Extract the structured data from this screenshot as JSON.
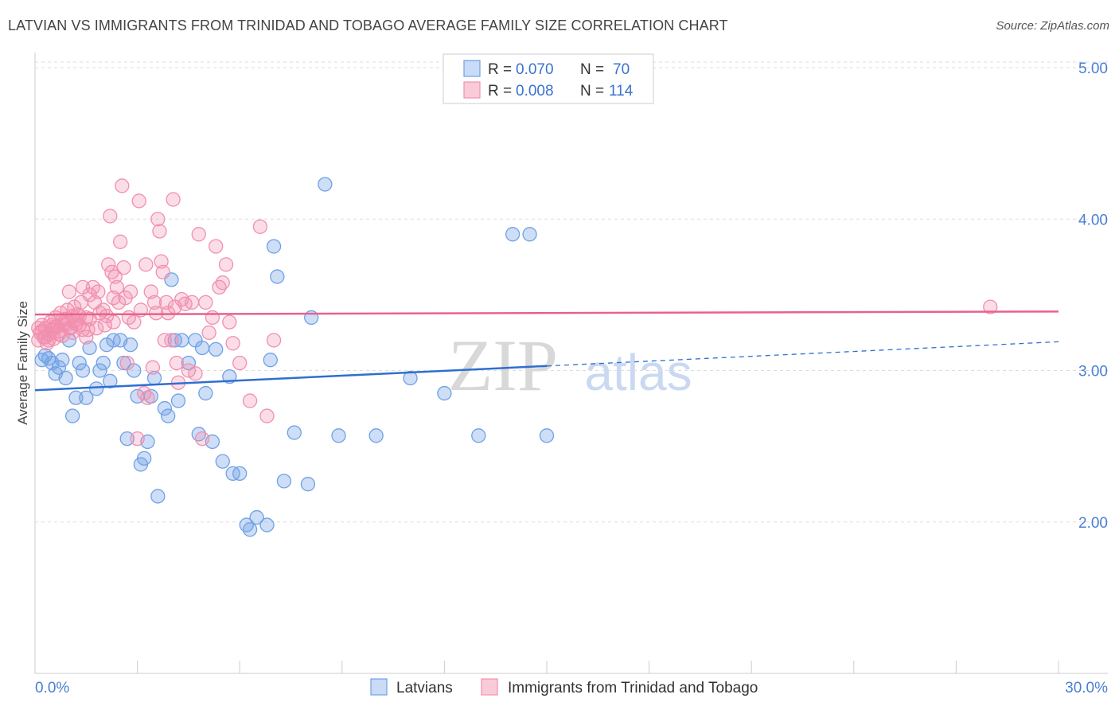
{
  "title": "LATVIAN VS IMMIGRANTS FROM TRINIDAD AND TOBAGO AVERAGE FAMILY SIZE CORRELATION CHART",
  "source": "Source: ZipAtlas.com",
  "watermark": {
    "zip": "ZIP",
    "atlas": "atlas"
  },
  "legend_top": [
    {
      "r_label": "R =",
      "r_value": "0.070",
      "n_label": "N =",
      "n_value": "70",
      "color": "#6fa1e6"
    },
    {
      "r_label": "R =",
      "r_value": "0.008",
      "n_label": "N =",
      "n_value": "114",
      "color": "#f28fae"
    }
  ],
  "chart_data": {
    "type": "scatter",
    "title": "LATVIAN VS IMMIGRANTS FROM TRINIDAD AND TOBAGO AVERAGE FAMILY SIZE CORRELATION CHART",
    "xlabel": "",
    "ylabel": "Average Family Size",
    "xlim": [
      0,
      30
    ],
    "ylim": [
      1.0,
      5.1
    ],
    "x_tick_labels": [
      "0.0%",
      "30.0%"
    ],
    "y_ticks": [
      2.0,
      3.0,
      4.0,
      5.0
    ],
    "y_tick_labels": [
      "2.00",
      "3.00",
      "4.00",
      "5.00"
    ],
    "grid": true,
    "legend": "bottom-center",
    "series": [
      {
        "name": "Latvians",
        "color": "#6fa1e6",
        "line_color": "#2f6fcf",
        "trend": {
          "x0": 0,
          "y0": 2.87,
          "x1": 15.0,
          "y1": 3.03,
          "x_dash_end": 30,
          "y_dash_end": 3.19
        },
        "points": [
          [
            0.2,
            3.07
          ],
          [
            0.3,
            3.1
          ],
          [
            0.4,
            3.08
          ],
          [
            0.5,
            3.05
          ],
          [
            0.6,
            2.98
          ],
          [
            0.7,
            3.02
          ],
          [
            0.8,
            3.07
          ],
          [
            0.9,
            2.95
          ],
          [
            1.0,
            3.2
          ],
          [
            1.1,
            2.7
          ],
          [
            1.2,
            2.82
          ],
          [
            1.3,
            3.05
          ],
          [
            1.4,
            3.0
          ],
          [
            1.5,
            2.82
          ],
          [
            1.6,
            3.15
          ],
          [
            1.8,
            2.88
          ],
          [
            1.9,
            3.0
          ],
          [
            2.0,
            3.05
          ],
          [
            2.1,
            3.17
          ],
          [
            2.2,
            2.93
          ],
          [
            2.3,
            3.2
          ],
          [
            2.5,
            3.2
          ],
          [
            2.6,
            3.05
          ],
          [
            2.7,
            2.55
          ],
          [
            2.8,
            3.17
          ],
          [
            2.9,
            3.0
          ],
          [
            3.0,
            2.83
          ],
          [
            3.1,
            2.38
          ],
          [
            3.2,
            2.42
          ],
          [
            3.3,
            2.53
          ],
          [
            3.4,
            2.83
          ],
          [
            3.5,
            2.95
          ],
          [
            3.6,
            2.17
          ],
          [
            3.8,
            2.75
          ],
          [
            3.9,
            2.7
          ],
          [
            4.0,
            3.6
          ],
          [
            4.1,
            3.2
          ],
          [
            4.2,
            2.8
          ],
          [
            4.3,
            3.2
          ],
          [
            4.5,
            3.05
          ],
          [
            4.7,
            3.2
          ],
          [
            4.8,
            2.58
          ],
          [
            4.9,
            3.15
          ],
          [
            5.0,
            2.85
          ],
          [
            5.2,
            2.53
          ],
          [
            5.3,
            3.14
          ],
          [
            5.5,
            2.4
          ],
          [
            5.7,
            2.96
          ],
          [
            5.8,
            2.32
          ],
          [
            6.0,
            2.32
          ],
          [
            6.2,
            1.98
          ],
          [
            6.3,
            1.95
          ],
          [
            6.5,
            2.03
          ],
          [
            6.8,
            1.98
          ],
          [
            6.9,
            3.07
          ],
          [
            7.0,
            3.82
          ],
          [
            7.1,
            3.62
          ],
          [
            7.3,
            2.27
          ],
          [
            7.6,
            2.59
          ],
          [
            8.0,
            2.25
          ],
          [
            8.1,
            3.35
          ],
          [
            8.5,
            4.23
          ],
          [
            8.9,
            2.57
          ],
          [
            10.0,
            2.57
          ],
          [
            11.0,
            2.95
          ],
          [
            12.0,
            2.85
          ],
          [
            13.0,
            2.57
          ],
          [
            14.0,
            3.9
          ],
          [
            14.5,
            3.9
          ],
          [
            15.0,
            2.57
          ]
        ]
      },
      {
        "name": "Immigrants from Trinidad and Tobago",
        "color": "#f28fae",
        "line_color": "#e8628c",
        "trend": {
          "x0": 0,
          "y0": 3.37,
          "x1": 30,
          "y1": 3.39
        },
        "points": [
          [
            0.1,
            3.2
          ],
          [
            0.15,
            3.25
          ],
          [
            0.2,
            3.3
          ],
          [
            0.25,
            3.22
          ],
          [
            0.3,
            3.28
          ],
          [
            0.35,
            3.18
          ],
          [
            0.4,
            3.24
          ],
          [
            0.45,
            3.32
          ],
          [
            0.5,
            3.27
          ],
          [
            0.55,
            3.21
          ],
          [
            0.6,
            3.35
          ],
          [
            0.65,
            3.29
          ],
          [
            0.7,
            3.26
          ],
          [
            0.75,
            3.38
          ],
          [
            0.8,
            3.23
          ],
          [
            0.85,
            3.31
          ],
          [
            0.9,
            3.34
          ],
          [
            0.95,
            3.4
          ],
          [
            1.0,
            3.52
          ],
          [
            1.05,
            3.28
          ],
          [
            1.1,
            3.36
          ],
          [
            1.15,
            3.42
          ],
          [
            1.2,
            3.33
          ],
          [
            1.25,
            3.37
          ],
          [
            1.3,
            3.3
          ],
          [
            1.35,
            3.45
          ],
          [
            1.4,
            3.55
          ],
          [
            1.5,
            3.35
          ],
          [
            1.55,
            3.27
          ],
          [
            1.6,
            3.5
          ],
          [
            1.7,
            3.55
          ],
          [
            1.75,
            3.45
          ],
          [
            1.8,
            3.28
          ],
          [
            1.85,
            3.52
          ],
          [
            1.9,
            3.38
          ],
          [
            2.0,
            3.4
          ],
          [
            2.05,
            3.3
          ],
          [
            2.1,
            3.36
          ],
          [
            2.15,
            3.7
          ],
          [
            2.2,
            4.02
          ],
          [
            2.25,
            3.65
          ],
          [
            2.3,
            3.32
          ],
          [
            2.35,
            3.62
          ],
          [
            2.4,
            3.55
          ],
          [
            2.45,
            3.45
          ],
          [
            2.5,
            3.85
          ],
          [
            2.55,
            4.22
          ],
          [
            2.6,
            3.68
          ],
          [
            2.65,
            3.48
          ],
          [
            2.7,
            3.05
          ],
          [
            2.75,
            3.35
          ],
          [
            2.8,
            3.52
          ],
          [
            2.9,
            3.32
          ],
          [
            3.0,
            2.55
          ],
          [
            3.05,
            4.12
          ],
          [
            3.1,
            3.4
          ],
          [
            3.2,
            2.85
          ],
          [
            3.25,
            3.7
          ],
          [
            3.3,
            2.82
          ],
          [
            3.4,
            3.52
          ],
          [
            3.45,
            3.02
          ],
          [
            3.5,
            3.45
          ],
          [
            3.55,
            3.38
          ],
          [
            3.6,
            4.0
          ],
          [
            3.65,
            3.92
          ],
          [
            3.7,
            3.72
          ],
          [
            3.75,
            3.65
          ],
          [
            3.8,
            3.2
          ],
          [
            3.85,
            3.45
          ],
          [
            3.9,
            3.38
          ],
          [
            4.0,
            3.2
          ],
          [
            4.05,
            4.13
          ],
          [
            4.1,
            3.42
          ],
          [
            4.15,
            3.05
          ],
          [
            4.2,
            2.92
          ],
          [
            4.3,
            3.47
          ],
          [
            4.4,
            3.44
          ],
          [
            4.5,
            3.0
          ],
          [
            4.6,
            3.45
          ],
          [
            4.7,
            2.98
          ],
          [
            4.8,
            3.9
          ],
          [
            4.9,
            2.55
          ],
          [
            5.0,
            3.45
          ],
          [
            5.1,
            3.25
          ],
          [
            5.2,
            3.35
          ],
          [
            5.3,
            3.82
          ],
          [
            5.4,
            3.55
          ],
          [
            5.5,
            3.58
          ],
          [
            5.6,
            3.7
          ],
          [
            5.7,
            3.32
          ],
          [
            5.8,
            3.18
          ],
          [
            6.0,
            3.05
          ],
          [
            6.3,
            2.8
          ],
          [
            6.6,
            3.95
          ],
          [
            6.8,
            2.7
          ],
          [
            7.0,
            3.2
          ],
          [
            0.3,
            3.22
          ],
          [
            0.5,
            3.3
          ],
          [
            0.7,
            3.24
          ],
          [
            1.0,
            3.28
          ],
          [
            1.2,
            3.31
          ],
          [
            1.4,
            3.27
          ],
          [
            1.6,
            3.34
          ],
          [
            0.2,
            3.26
          ],
          [
            0.4,
            3.2
          ],
          [
            0.6,
            3.29
          ],
          [
            0.8,
            3.33
          ],
          [
            1.1,
            3.25
          ],
          [
            1.3,
            3.36
          ],
          [
            1.5,
            3.22
          ],
          [
            0.9,
            3.3
          ],
          [
            0.1,
            3.28
          ],
          [
            2.3,
            3.48
          ],
          [
            28.0,
            3.42
          ]
        ]
      }
    ]
  }
}
